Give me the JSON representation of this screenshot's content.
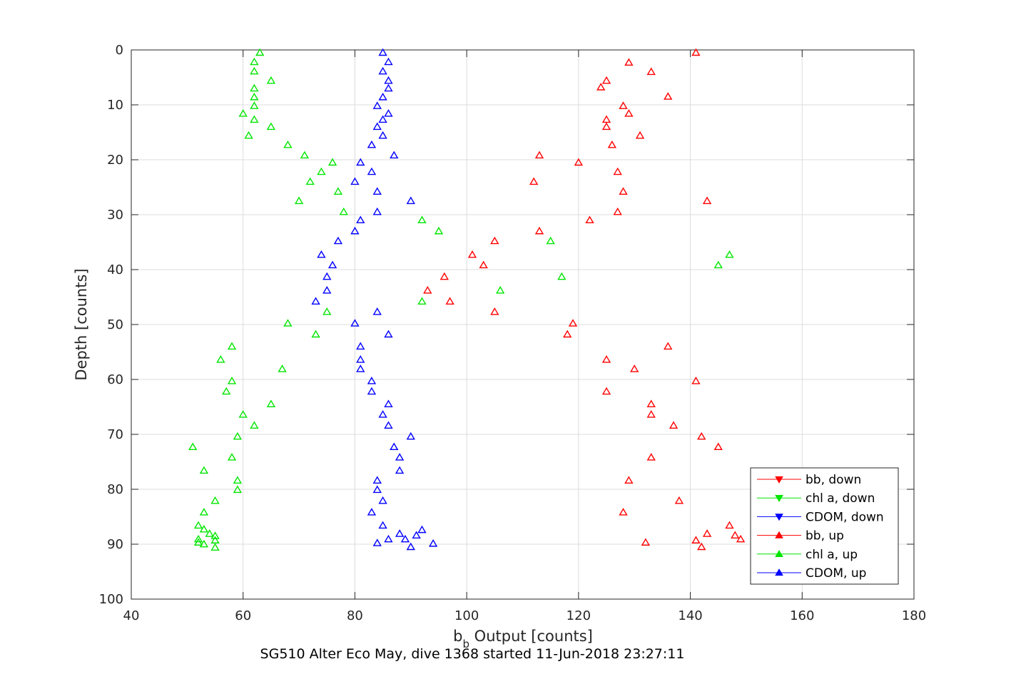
{
  "chart_data": {
    "type": "scatter",
    "xlabel": "b_b Output [counts]",
    "xlabel_parts": {
      "main": "b",
      "subscript": "b",
      "rest": " Output [counts]"
    },
    "ylabel": "Depth [counts]",
    "caption": "SG510 Alter Eco May, dive 1368 started 11-Jun-2018 23:27:11",
    "xlim": [
      40,
      180
    ],
    "ylim": [
      0,
      100
    ],
    "y_reversed": true,
    "grid": true,
    "x_ticks": [
      40,
      60,
      80,
      100,
      120,
      140,
      160,
      180
    ],
    "y_ticks": [
      0,
      10,
      20,
      30,
      40,
      50,
      60,
      70,
      80,
      90,
      100
    ],
    "legend_position": "bottom-right",
    "series": [
      {
        "name": "bb, down",
        "color": "#ff0000",
        "marker": "triangle-down",
        "points": []
      },
      {
        "name": "chl a, down",
        "color": "#00e600",
        "marker": "triangle-down",
        "points": []
      },
      {
        "name": "CDOM, down",
        "color": "#0000ff",
        "marker": "triangle-down",
        "points": []
      },
      {
        "name": "bb, up",
        "color": "#ff0000",
        "marker": "triangle-up",
        "points": [
          [
            141,
            0.5
          ],
          [
            129,
            2.3
          ],
          [
            133,
            4
          ],
          [
            125,
            5.6
          ],
          [
            124,
            6.8
          ],
          [
            136,
            8.5
          ],
          [
            128,
            10.2
          ],
          [
            129,
            11.6
          ],
          [
            125,
            12.7
          ],
          [
            125,
            14
          ],
          [
            131,
            15.6
          ],
          [
            126,
            17.3
          ],
          [
            113,
            19.2
          ],
          [
            120,
            20.5
          ],
          [
            127,
            22.2
          ],
          [
            112,
            24
          ],
          [
            128,
            25.8
          ],
          [
            143,
            27.5
          ],
          [
            127,
            29.5
          ],
          [
            122,
            31
          ],
          [
            113,
            33
          ],
          [
            105,
            34.8
          ],
          [
            101,
            37.3
          ],
          [
            103,
            39.2
          ],
          [
            96,
            41.3
          ],
          [
            93,
            43.8
          ],
          [
            97,
            45.8
          ],
          [
            105,
            47.7
          ],
          [
            119,
            49.8
          ],
          [
            118,
            51.8
          ],
          [
            136,
            54
          ],
          [
            125,
            56.4
          ],
          [
            130,
            58.1
          ],
          [
            141,
            60.3
          ],
          [
            125,
            62.2
          ],
          [
            133,
            64.5
          ],
          [
            133,
            66.4
          ],
          [
            137,
            68.4
          ],
          [
            142,
            70.4
          ],
          [
            145,
            72.3
          ],
          [
            133,
            74.2
          ],
          [
            129,
            78.4
          ],
          [
            138,
            82.1
          ],
          [
            128,
            84.2
          ],
          [
            147,
            86.6
          ],
          [
            143,
            88.1
          ],
          [
            148,
            88.4
          ],
          [
            149,
            89.1
          ],
          [
            141,
            89.3
          ],
          [
            142,
            90.5
          ],
          [
            132,
            89.7
          ]
        ]
      },
      {
        "name": "chl a, up",
        "color": "#00e600",
        "marker": "triangle-up",
        "points": [
          [
            63,
            0.5
          ],
          [
            62,
            2.2
          ],
          [
            62,
            3.9
          ],
          [
            65,
            5.6
          ],
          [
            62,
            7
          ],
          [
            62,
            8.6
          ],
          [
            62,
            10.2
          ],
          [
            60,
            11.6
          ],
          [
            62,
            12.7
          ],
          [
            65,
            14
          ],
          [
            61,
            15.6
          ],
          [
            68,
            17.3
          ],
          [
            71,
            19.2
          ],
          [
            76,
            20.5
          ],
          [
            74,
            22.2
          ],
          [
            72,
            24
          ],
          [
            77,
            25.8
          ],
          [
            70,
            27.5
          ],
          [
            78,
            29.5
          ],
          [
            92,
            31
          ],
          [
            95,
            33
          ],
          [
            115,
            34.8
          ],
          [
            147,
            37.3
          ],
          [
            145,
            39.2
          ],
          [
            117,
            41.3
          ],
          [
            106,
            43.8
          ],
          [
            92,
            45.8
          ],
          [
            75,
            47.7
          ],
          [
            68,
            49.8
          ],
          [
            73,
            51.8
          ],
          [
            58,
            54
          ],
          [
            56,
            56.4
          ],
          [
            67,
            58.1
          ],
          [
            58,
            60.3
          ],
          [
            57,
            62.2
          ],
          [
            65,
            64.5
          ],
          [
            60,
            66.4
          ],
          [
            62,
            68.4
          ],
          [
            59,
            70.4
          ],
          [
            51,
            72.3
          ],
          [
            58,
            74.2
          ],
          [
            53,
            76.6
          ],
          [
            59,
            78.4
          ],
          [
            59,
            80.1
          ],
          [
            55,
            82.1
          ],
          [
            53,
            84.2
          ],
          [
            52,
            86.6
          ],
          [
            53,
            87.3
          ],
          [
            54,
            88.1
          ],
          [
            55,
            88.5
          ],
          [
            52,
            89.1
          ],
          [
            55,
            89.3
          ],
          [
            52,
            89.7
          ],
          [
            53,
            90
          ],
          [
            55,
            90.6
          ]
        ]
      },
      {
        "name": "CDOM, up",
        "color": "#0000ff",
        "marker": "triangle-up",
        "points": [
          [
            85,
            0.5
          ],
          [
            86,
            2.2
          ],
          [
            85,
            3.9
          ],
          [
            86,
            5.6
          ],
          [
            86,
            7
          ],
          [
            85,
            8.6
          ],
          [
            84,
            10.2
          ],
          [
            86,
            11.6
          ],
          [
            85,
            12.7
          ],
          [
            84,
            14
          ],
          [
            85,
            15.6
          ],
          [
            83,
            17.3
          ],
          [
            87,
            19.2
          ],
          [
            81,
            20.5
          ],
          [
            83,
            22.2
          ],
          [
            80,
            24
          ],
          [
            84,
            25.8
          ],
          [
            90,
            27.5
          ],
          [
            84,
            29.5
          ],
          [
            81,
            31
          ],
          [
            80,
            33
          ],
          [
            77,
            34.8
          ],
          [
            74,
            37.3
          ],
          [
            76,
            39.2
          ],
          [
            75,
            41.3
          ],
          [
            75,
            43.8
          ],
          [
            73,
            45.8
          ],
          [
            84,
            47.7
          ],
          [
            80,
            49.8
          ],
          [
            86,
            51.8
          ],
          [
            81,
            54
          ],
          [
            81,
            56.4
          ],
          [
            81,
            58.1
          ],
          [
            83,
            60.3
          ],
          [
            83,
            62.2
          ],
          [
            86,
            64.5
          ],
          [
            85,
            66.4
          ],
          [
            86,
            68.4
          ],
          [
            90,
            70.4
          ],
          [
            87,
            72.3
          ],
          [
            88,
            74.2
          ],
          [
            88,
            76.6
          ],
          [
            84,
            78.4
          ],
          [
            84,
            80.1
          ],
          [
            85,
            82.1
          ],
          [
            83,
            84.2
          ],
          [
            85,
            86.6
          ],
          [
            92,
            87.4
          ],
          [
            88,
            88.1
          ],
          [
            91,
            88.4
          ],
          [
            89,
            89.1
          ],
          [
            86,
            89.1
          ],
          [
            84,
            89.8
          ],
          [
            94,
            89.9
          ],
          [
            90,
            90.5
          ]
        ]
      }
    ]
  }
}
